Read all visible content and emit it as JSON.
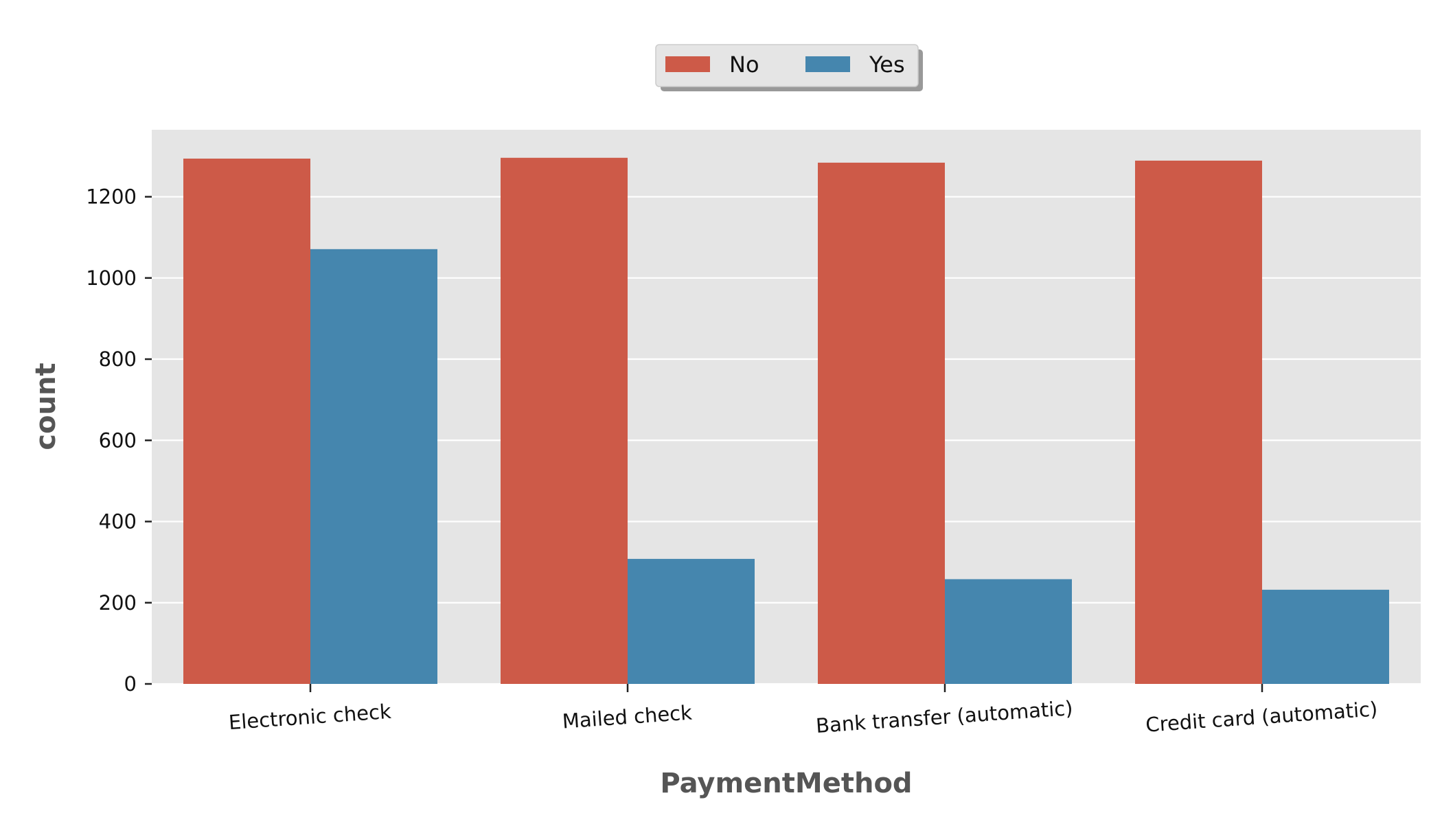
{
  "chart_data": {
    "type": "bar",
    "categories": [
      "Electronic check",
      "Mailed check",
      "Bank transfer (automatic)",
      "Credit card (automatic)"
    ],
    "series": [
      {
        "name": "No",
        "values": [
          1294,
          1296,
          1284,
          1289
        ],
        "color": "#cd5a48"
      },
      {
        "name": "Yes",
        "values": [
          1071,
          308,
          258,
          232
        ],
        "color": "#4586ae"
      }
    ],
    "xlabel": "PaymentMethod",
    "ylabel": "count",
    "ylim": [
      0,
      1365
    ],
    "yticks": [
      0,
      200,
      400,
      600,
      800,
      1000,
      1200
    ],
    "grid": true,
    "legend": {
      "placement": "top-center",
      "columns": 2
    }
  }
}
